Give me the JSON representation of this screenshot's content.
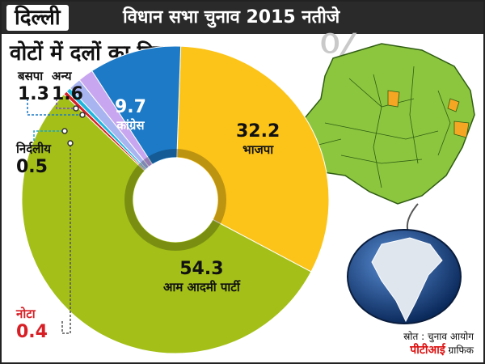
{
  "header": {
    "city": "दिल्ली",
    "title": "विधान सभा चुनाव 2015 नतीजे"
  },
  "chart_title": "वोटों में दलों का हिस्सा",
  "percent_sign": "%",
  "source": "स्रोत : चुनाव आयोग",
  "credit": {
    "brand": "पीटीआई",
    "suffix": " ग्राफिक"
  },
  "colors": {
    "aap": "#a3bf18",
    "bjp": "#fcc419",
    "congress": "#1c7ac7",
    "bsp": "#a8b4f0",
    "others": "#c8a6f0",
    "independent": "#20b6dc",
    "nota": "#d81f26",
    "map_fill": "#8cc63f",
    "highlight": "#f5a623"
  },
  "chart_data": {
    "type": "pie",
    "title": "वोटों में दलों का हिस्सा",
    "unit": "%",
    "categories": [
      "आम आदमी पार्टी",
      "भाजपा",
      "कांग्रेस",
      "अन्य",
      "बसपा",
      "निर्दलीय",
      "नोटा"
    ],
    "values": [
      54.3,
      32.2,
      9.7,
      1.6,
      1.3,
      0.5,
      0.4
    ],
    "labels": [
      {
        "value": "54.3",
        "name": "आम आदमी पार्टी"
      },
      {
        "value": "32.2",
        "name": "भाजपा"
      },
      {
        "value": "9.7",
        "name": "कांग्रेस"
      },
      {
        "value": "1.6",
        "name": "अन्य"
      },
      {
        "value": "1.3",
        "name": "बसपा"
      },
      {
        "value": "0.5",
        "name": "निर्दलीय"
      },
      {
        "value": "0.4",
        "name": "नोटा"
      }
    ]
  }
}
